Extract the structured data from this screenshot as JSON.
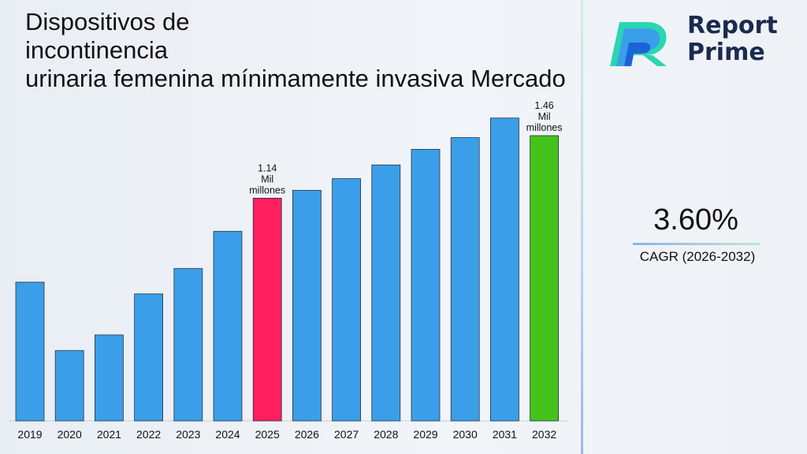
{
  "title": "Dispositivos de\nincontinencia\nurinaria femenina mínimamente invasiva Mercado",
  "logo": {
    "line1": "Report",
    "line2": "Prime"
  },
  "cagr": {
    "value": "3.60%",
    "label": "CAGR (2026-2032)"
  },
  "colors": {
    "bar": "#3a9fe8",
    "highlight": "#ff1f5f",
    "final": "#44c21a"
  },
  "chart_data": {
    "type": "bar",
    "categories": [
      "2019",
      "2020",
      "2021",
      "2022",
      "2023",
      "2024",
      "2025",
      "2026",
      "2027",
      "2028",
      "2029",
      "2030",
      "2031",
      "2032"
    ],
    "values": [
      0.71,
      0.36,
      0.44,
      0.65,
      0.78,
      0.97,
      1.14,
      1.18,
      1.24,
      1.31,
      1.39,
      1.45,
      1.55,
      1.46
    ],
    "data_labels": [
      {
        "category": "2025",
        "text": [
          "1.14",
          "Mil",
          "millones"
        ]
      },
      {
        "category": "2032",
        "text": [
          "1.46",
          "Mil",
          "millones"
        ]
      }
    ],
    "highlight": {
      "2025": "highlight",
      "2032": "final"
    }
  }
}
